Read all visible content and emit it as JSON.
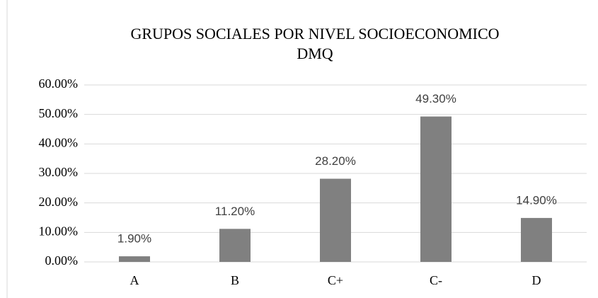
{
  "chart_data": {
    "type": "bar",
    "title": [
      "GRUPOS SOCIALES POR NIVEL SOCIOECONOMICO",
      "DMQ"
    ],
    "categories": [
      "A",
      "B",
      "C+",
      "C-",
      "D"
    ],
    "values": [
      1.9,
      11.2,
      28.2,
      49.3,
      14.9
    ],
    "value_labels": [
      "1.90%",
      "11.20%",
      "28.20%",
      "49.30%",
      "14.90%"
    ],
    "color": "#808080",
    "ylim": [
      0,
      60
    ],
    "yticks": [
      {
        "value": 0,
        "label": "0.00%"
      },
      {
        "value": 10,
        "label": "10.00%"
      },
      {
        "value": 20,
        "label": "20.00%"
      },
      {
        "value": 30,
        "label": "30.00%"
      },
      {
        "value": 40,
        "label": "40.00%"
      },
      {
        "value": 50,
        "label": "50.00%"
      },
      {
        "value": 60,
        "label": "60.00%"
      }
    ],
    "grid": true
  }
}
